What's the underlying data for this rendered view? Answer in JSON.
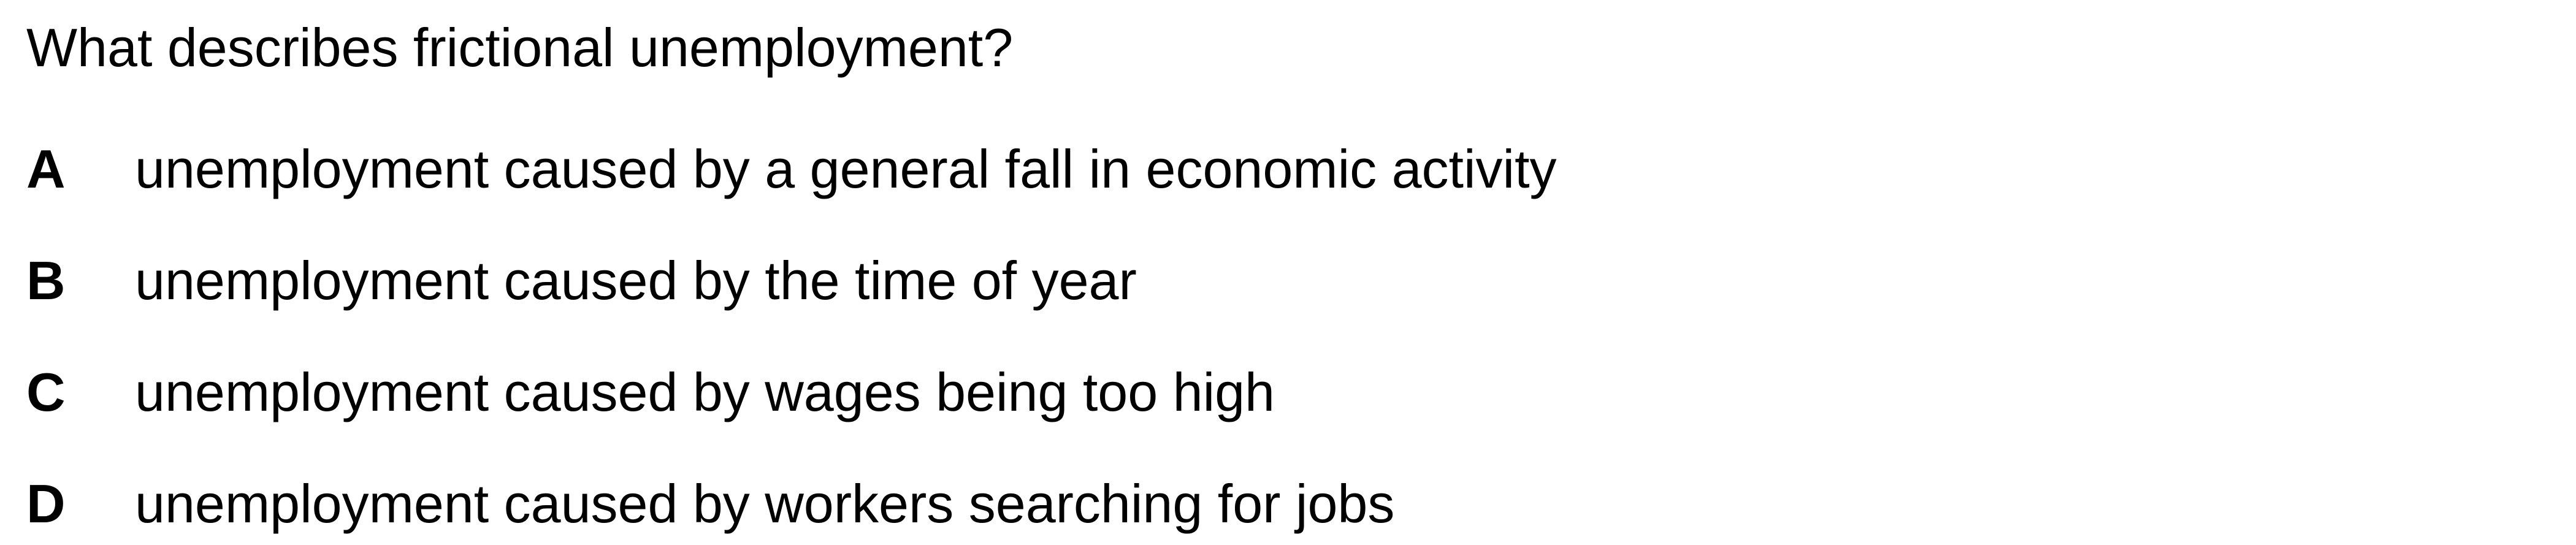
{
  "question": {
    "text": "What describes frictional unemployment?"
  },
  "options": [
    {
      "letter": "A",
      "text": "unemployment caused by a general fall in economic activity"
    },
    {
      "letter": "B",
      "text": "unemployment caused by the time of year"
    },
    {
      "letter": "C",
      "text": "unemployment caused by wages being too high"
    },
    {
      "letter": "D",
      "text": "unemployment caused by workers searching for jobs"
    }
  ]
}
